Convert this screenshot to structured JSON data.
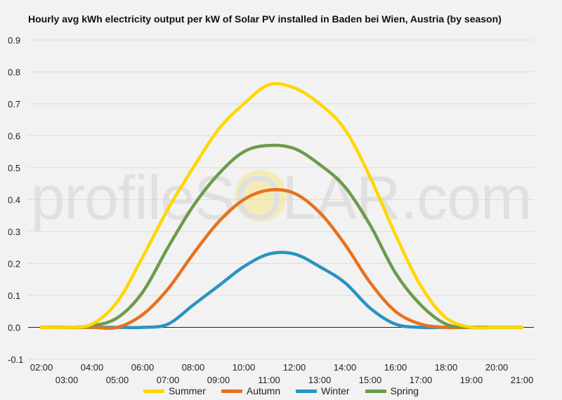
{
  "chart_data": {
    "type": "line",
    "title": "Hourly avg kWh electricity output per kW of Solar PV installed in Baden bei Wien, Austria (by season)",
    "watermark": "profileSOLAR.com",
    "xlabel": "",
    "ylabel": "",
    "ylim": [
      -0.1,
      0.9
    ],
    "yticks": [
      "-0.1",
      "0.0",
      "0.1",
      "0.2",
      "0.3",
      "0.4",
      "0.5",
      "0.6",
      "0.7",
      "0.8",
      "0.9"
    ],
    "xticks_top": [
      "02:00",
      "04:00",
      "06:00",
      "08:00",
      "10:00",
      "12:00",
      "14:00",
      "16:00",
      "18:00",
      "20:00"
    ],
    "xticks_bottom": [
      "03:00",
      "05:00",
      "07:00",
      "09:00",
      "11:00",
      "13:00",
      "15:00",
      "17:00",
      "19:00",
      "21:00"
    ],
    "x": [
      "02:00",
      "03:00",
      "04:00",
      "05:00",
      "06:00",
      "07:00",
      "08:00",
      "09:00",
      "10:00",
      "11:00",
      "12:00",
      "13:00",
      "14:00",
      "15:00",
      "16:00",
      "17:00",
      "18:00",
      "19:00",
      "20:00",
      "21:00"
    ],
    "grid": true,
    "legend_position": "bottom",
    "series": [
      {
        "name": "Summer",
        "color": "#ffd700",
        "values": [
          0,
          0,
          0.01,
          0.08,
          0.22,
          0.37,
          0.5,
          0.62,
          0.7,
          0.76,
          0.75,
          0.7,
          0.62,
          0.47,
          0.29,
          0.13,
          0.03,
          0,
          0,
          0
        ]
      },
      {
        "name": "Autumn",
        "color": "#e8711c",
        "values": [
          0,
          0,
          0,
          0,
          0.04,
          0.12,
          0.23,
          0.33,
          0.4,
          0.43,
          0.42,
          0.36,
          0.26,
          0.14,
          0.05,
          0.01,
          0,
          0,
          0,
          0
        ]
      },
      {
        "name": "Winter",
        "color": "#2a93c1",
        "values": [
          0,
          0,
          0,
          0,
          0,
          0.01,
          0.07,
          0.13,
          0.19,
          0.23,
          0.23,
          0.19,
          0.14,
          0.06,
          0.01,
          0,
          0,
          0,
          0,
          0
        ]
      },
      {
        "name": "Spring",
        "color": "#6e9b4b",
        "values": [
          0,
          0,
          0.005,
          0.03,
          0.11,
          0.25,
          0.38,
          0.48,
          0.55,
          0.57,
          0.56,
          0.51,
          0.44,
          0.32,
          0.17,
          0.07,
          0.01,
          0,
          0,
          0
        ]
      }
    ]
  }
}
